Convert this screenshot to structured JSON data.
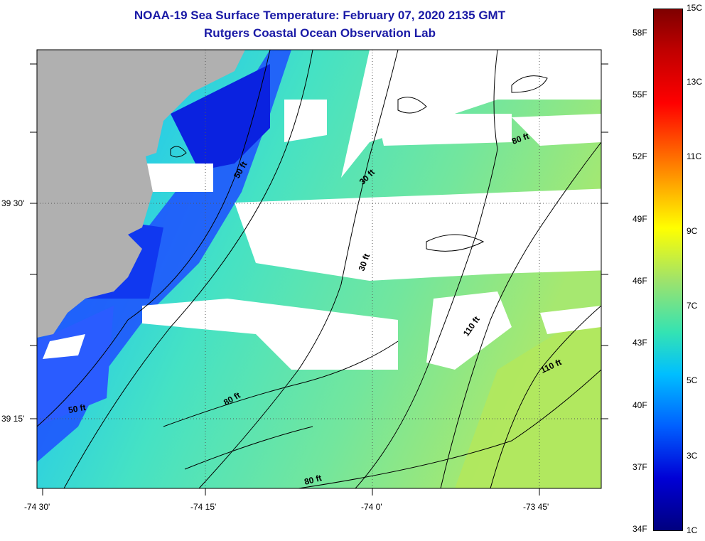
{
  "title": {
    "line1": "NOAA-19 Sea Surface Temperature:  February 07, 2020 2135 GMT",
    "line2": "Rutgers Coastal Ocean Observation Lab"
  },
  "axes": {
    "x_ticks": [
      "-74 30'",
      "-74 15'",
      "-74 0'",
      "-73 45'"
    ],
    "y_ticks": [
      "39 30'",
      "39 15'"
    ]
  },
  "contours": {
    "labels": [
      "50 ft",
      "30 ft",
      "80 ft",
      "30 ft",
      "110 ft",
      "110 ft",
      "80 ft",
      "50 ft",
      "80 ft"
    ]
  },
  "colorbar": {
    "fahrenheit": [
      "58F",
      "55F",
      "52F",
      "49F",
      "46F",
      "43F",
      "40F",
      "37F",
      "34F"
    ],
    "celsius": [
      "15C",
      "13C",
      "11C",
      "9C",
      "7C",
      "5C",
      "3C",
      "1C"
    ]
  },
  "colors": {
    "land": "#b0b0b0",
    "cloud": "#ffffff",
    "title": "#1a1aa6"
  }
}
